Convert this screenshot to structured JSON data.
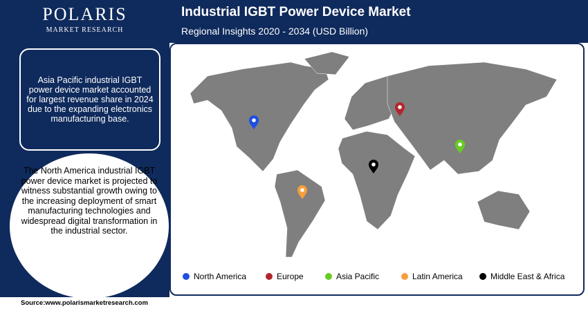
{
  "header": {
    "logo": "POLARIS",
    "logo_sub": "MARKET RESEARCH",
    "title": "Industrial IGBT Power Device Market",
    "subtitle": "Regional Insights 2020 - 2034 (USD Billion)"
  },
  "callouts": [
    "Asia Pacific industrial IGBT power device market accounted for largest revenue share in 2024 due to the expanding electronics manufacturing base.",
    "The North America industrial IGBT power device market is projected to witness substantial growth owing to the increasing deployment of smart manufacturing technologies and widespread digital transformation in the industrial sector."
  ],
  "legend": [
    {
      "label": "North America",
      "color": "#1f4fe0"
    },
    {
      "label": "Europe",
      "color": "#b3262e"
    },
    {
      "label": "Asia Pacific",
      "color": "#66cc22"
    },
    {
      "label": "Latin America",
      "color": "#f5a03c"
    },
    {
      "label": "Middle East & Africa",
      "color": "#000000"
    }
  ],
  "source": "Source:www.polarismarketresearch.com"
}
